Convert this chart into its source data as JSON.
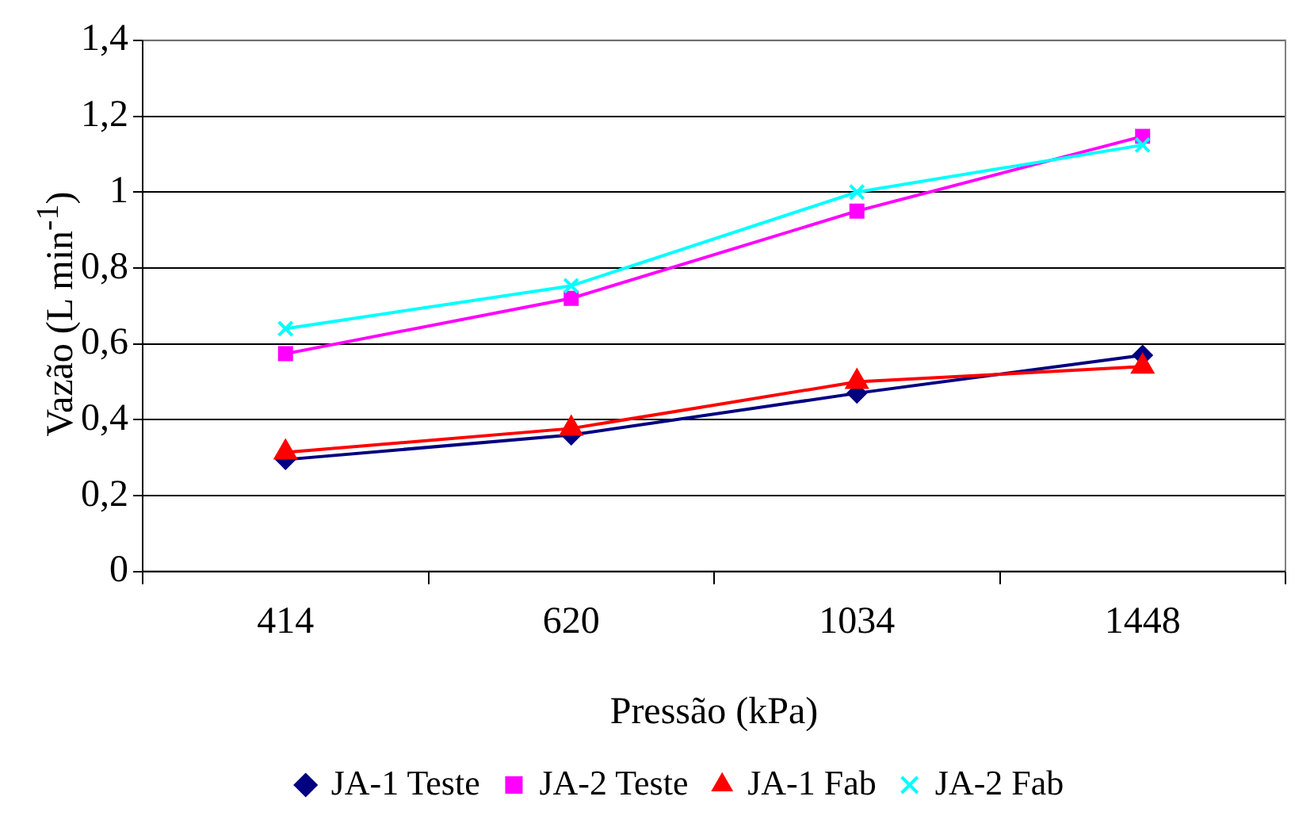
{
  "chart_data": {
    "type": "line",
    "xlabel": "Pressão (kPa)",
    "ylabel": "Vazão (L min$^{-1}$)",
    "categories": [
      "414",
      "620",
      "1034",
      "1448"
    ],
    "series": [
      {
        "name": "JA-1 Teste",
        "color": "#000080",
        "marker": "diamond",
        "values": [
          0.295,
          0.36,
          0.47,
          0.57
        ]
      },
      {
        "name": "JA-2 Teste",
        "color": "#ff00ff",
        "marker": "square",
        "values": [
          0.574,
          0.72,
          0.95,
          1.147
        ]
      },
      {
        "name": "JA-1 Fab",
        "color": "#ff0000",
        "marker": "triangle",
        "values": [
          0.314,
          0.377,
          0.5,
          0.54
        ]
      },
      {
        "name": "JA-2 Fab",
        "color": "#00ffff",
        "marker": "cross",
        "values": [
          0.64,
          0.753,
          1.0,
          1.124
        ]
      }
    ],
    "ylim": [
      0,
      1.4
    ],
    "yticks": [
      0,
      {
        "value": 0.2,
        "label": "0,2"
      },
      {
        "value": 0.4,
        "label": "0,4"
      },
      {
        "value": 0.6,
        "label": "0,6"
      },
      {
        "value": 0.8,
        "label": "0,8"
      },
      1,
      {
        "value": 1.2,
        "label": "1,2"
      },
      {
        "value": 1.4,
        "label": "1,4"
      }
    ],
    "grid": "y",
    "legend": "bottom"
  }
}
